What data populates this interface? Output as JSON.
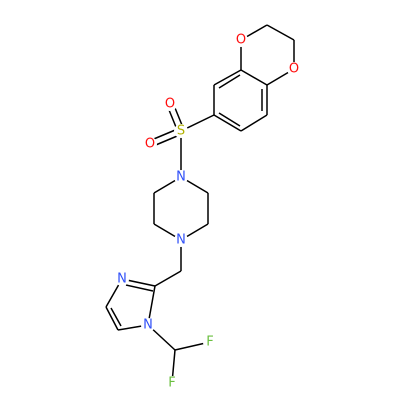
{
  "atoms": [
    {
      "label": "O"
    },
    {
      "label": "O"
    },
    {
      "label": "O"
    },
    {
      "label": "S"
    },
    {
      "label": "O"
    },
    {
      "label": "N"
    },
    {
      "label": "N"
    },
    {
      "label": "N"
    },
    {
      "label": "N"
    },
    {
      "label": "F"
    },
    {
      "label": "F"
    }
  ]
}
